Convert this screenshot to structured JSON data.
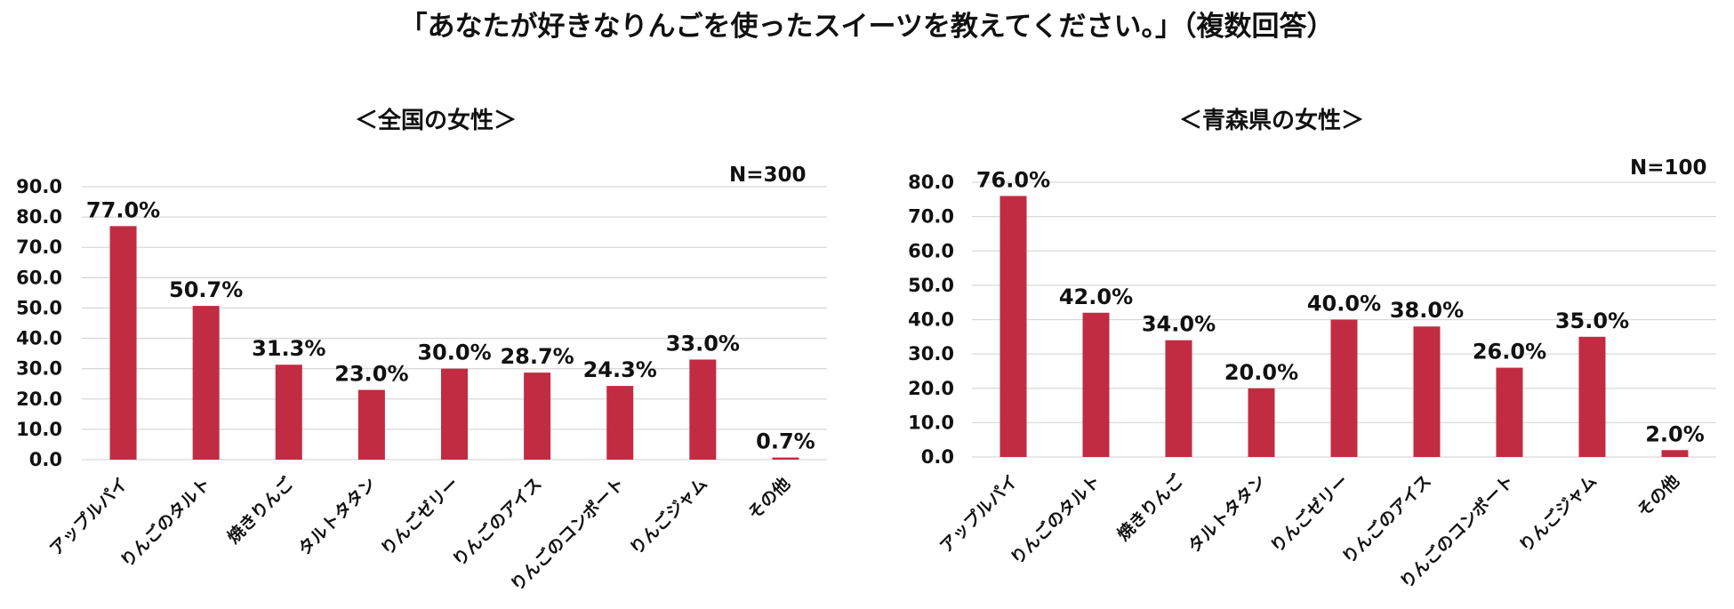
{
  "title": "「あなたが好きなりんごを使ったスイーツを教えてください。」（複数回答）",
  "colors": {
    "bar": "#C12C42",
    "grid": "#D9D9D9"
  },
  "chart_data": [
    {
      "type": "bar",
      "title": "＜全国の女性＞",
      "note": "N=300",
      "categories": [
        "アップルパイ",
        "りんごのタルト",
        "焼きりんご",
        "タルトタタン",
        "りんごゼリー",
        "りんごのアイス",
        "りんごのコンポート",
        "りんごジャム",
        "その他"
      ],
      "values": [
        77.0,
        50.7,
        31.3,
        23.0,
        30.0,
        28.7,
        24.3,
        33.0,
        0.7
      ],
      "value_labels": [
        "77.0%",
        "50.7%",
        "31.3%",
        "23.0%",
        "30.0%",
        "28.7%",
        "24.3%",
        "33.0%",
        "0.7%"
      ],
      "ylim": [
        0,
        90
      ],
      "yticks": [
        "0.0",
        "10.0",
        "20.0",
        "30.0",
        "40.0",
        "50.0",
        "60.0",
        "70.0",
        "80.0",
        "90.0"
      ],
      "grid": true,
      "xlabel": "",
      "ylabel": ""
    },
    {
      "type": "bar",
      "title": "＜青森県の女性＞",
      "note": "N=100",
      "categories": [
        "アップルパイ",
        "りんごのタルト",
        "焼きりんご",
        "タルトタタン",
        "りんごゼリー",
        "りんごのアイス",
        "りんごのコンポート",
        "りんごジャム",
        "その他"
      ],
      "values": [
        76.0,
        42.0,
        34.0,
        20.0,
        40.0,
        38.0,
        26.0,
        35.0,
        2.0
      ],
      "value_labels": [
        "76.0%",
        "42.0%",
        "34.0%",
        "20.0%",
        "40.0%",
        "38.0%",
        "26.0%",
        "35.0%",
        "2.0%"
      ],
      "ylim": [
        0,
        80
      ],
      "yticks": [
        "0.0",
        "10.0",
        "20.0",
        "30.0",
        "40.0",
        "50.0",
        "60.0",
        "70.0",
        "80.0"
      ],
      "grid": true,
      "xlabel": "",
      "ylabel": ""
    }
  ]
}
